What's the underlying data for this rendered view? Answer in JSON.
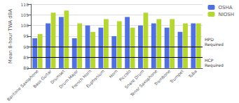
{
  "chart_data": {
    "type": "bar",
    "ylabel": "Mean 8-hour TWA dBA",
    "categories": [
      "Baritone Saxophone",
      "Bass Guitar",
      "Drumset",
      "Drum Major",
      "French Horn",
      "Euphonium",
      "Horn",
      "Piccolo",
      "Snare Drum",
      "Tenor Saxophone",
      "Trombone",
      "Trumpet",
      "Tuba"
    ],
    "series": [
      {
        "name": "OSHA",
        "values": [
          94,
          101,
          104,
          94,
          100,
          99,
          95,
          104,
          100,
          101,
          99,
          97,
          101
        ]
      },
      {
        "name": "NIOSH",
        "values": [
          96,
          106,
          107,
          101,
          97,
          103,
          102,
          99,
          106,
          103,
          103,
          101,
          101
        ]
      }
    ],
    "ylim": [
      80,
      110
    ],
    "yticks": [
      80,
      85,
      90,
      95,
      100,
      105,
      110
    ],
    "grid": true,
    "legend": "upper right",
    "annotations": [
      {
        "text": "HPD\nRequired",
        "y": 90
      },
      {
        "text": "HCP\nRequired",
        "y": 85
      }
    ]
  }
}
